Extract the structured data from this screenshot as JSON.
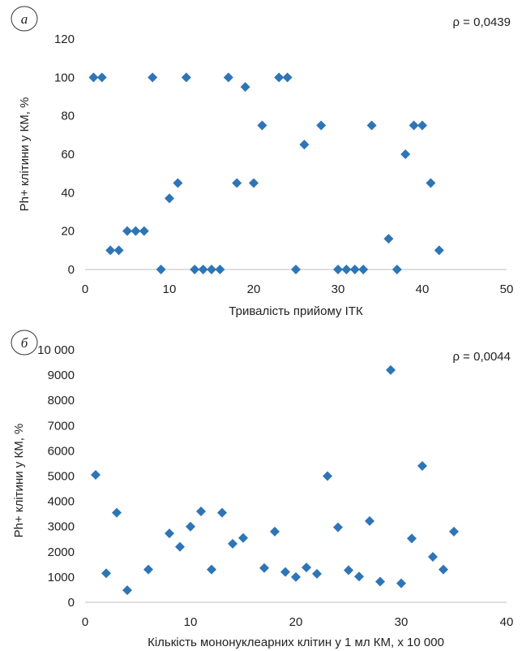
{
  "chart_data": [
    {
      "type": "scatter",
      "panel_letter": "а",
      "annotation": "ρ = 0,0439",
      "xlabel": "Тривалість прийому ІТК",
      "ylabel": "Ph+ клітини у КМ, %",
      "xlim": [
        0,
        50
      ],
      "ylim": [
        0,
        120
      ],
      "x_ticks": [
        "0",
        "10",
        "20",
        "30",
        "40",
        "50"
      ],
      "y_ticks": [
        "0",
        "20",
        "40",
        "60",
        "80",
        "100",
        "120"
      ],
      "grid": false,
      "marker_color": "#2e75b6",
      "points": [
        [
          1,
          100
        ],
        [
          2,
          100
        ],
        [
          3,
          10
        ],
        [
          4,
          10
        ],
        [
          5,
          20
        ],
        [
          6,
          20
        ],
        [
          7,
          20
        ],
        [
          8,
          100
        ],
        [
          9,
          0
        ],
        [
          10,
          37
        ],
        [
          11,
          45
        ],
        [
          12,
          100
        ],
        [
          13,
          0
        ],
        [
          14,
          0
        ],
        [
          15,
          0
        ],
        [
          16,
          0
        ],
        [
          17,
          100
        ],
        [
          18,
          45
        ],
        [
          19,
          95
        ],
        [
          20,
          45
        ],
        [
          21,
          75
        ],
        [
          23,
          100
        ],
        [
          24,
          100
        ],
        [
          25,
          0
        ],
        [
          26,
          65
        ],
        [
          28,
          75
        ],
        [
          30,
          0
        ],
        [
          31,
          0
        ],
        [
          32,
          0
        ],
        [
          33,
          0
        ],
        [
          34,
          75
        ],
        [
          36,
          16
        ],
        [
          37,
          0
        ],
        [
          38,
          60
        ],
        [
          39,
          75
        ],
        [
          40,
          75
        ],
        [
          41,
          45
        ],
        [
          42,
          10
        ]
      ]
    },
    {
      "type": "scatter",
      "panel_letter": "б",
      "annotation": "ρ = 0,0044",
      "xlabel": "Кількість мононуклеарних клітин у 1 мл КМ, х 10 000",
      "ylabel": "Ph+ клітини у КМ, %",
      "xlim": [
        0,
        40
      ],
      "ylim": [
        0,
        10000
      ],
      "x_ticks": [
        "0",
        "10",
        "20",
        "30",
        "40"
      ],
      "y_ticks": [
        "0",
        "1000",
        "2000",
        "3000",
        "4000",
        "5000",
        "6000",
        "7000",
        "8000",
        "9000",
        "10 000"
      ],
      "grid": false,
      "marker_color": "#2e75b6",
      "points": [
        [
          1,
          5050
        ],
        [
          2,
          1150
        ],
        [
          3,
          3550
        ],
        [
          4,
          480
        ],
        [
          6,
          1300
        ],
        [
          8,
          2730
        ],
        [
          9,
          2200
        ],
        [
          10,
          3000
        ],
        [
          11,
          3600
        ],
        [
          12,
          1300
        ],
        [
          13,
          3550
        ],
        [
          14,
          2320
        ],
        [
          15,
          2550
        ],
        [
          17,
          1360
        ],
        [
          18,
          2800
        ],
        [
          19,
          1200
        ],
        [
          20,
          1000
        ],
        [
          21,
          1380
        ],
        [
          22,
          1130
        ],
        [
          23,
          5000
        ],
        [
          24,
          2970
        ],
        [
          25,
          1270
        ],
        [
          26,
          1020
        ],
        [
          27,
          3220
        ],
        [
          28,
          820
        ],
        [
          29,
          9200
        ],
        [
          30,
          750
        ],
        [
          31,
          2530
        ],
        [
          32,
          5400
        ],
        [
          33,
          1800
        ],
        [
          34,
          1300
        ],
        [
          35,
          2800
        ]
      ]
    }
  ]
}
